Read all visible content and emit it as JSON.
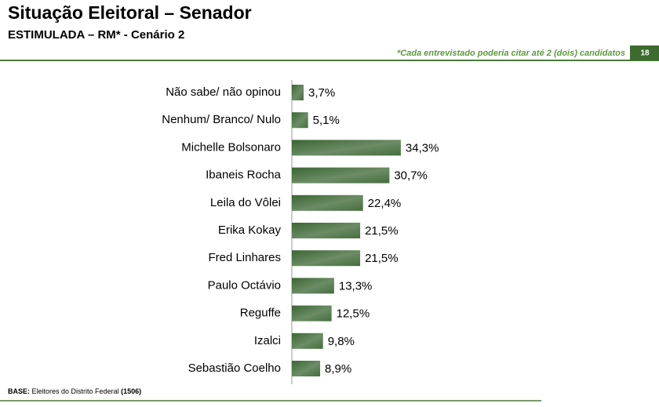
{
  "header": {
    "title": "Situação Eleitoral – Senador",
    "subtitle": "ESTIMULADA – RM* - Cenário 2",
    "note": "*Cada entrevistado poderia citar até 2 (dois) candidatos",
    "page_number": 18
  },
  "chart_data": {
    "type": "bar",
    "orientation": "horizontal",
    "color": "#3b6633",
    "categories": [
      "Não sabe/ não opinou",
      "Nenhum/ Branco/ Nulo",
      "Michelle Bolsonaro",
      "Ibaneis Rocha",
      "Leila do Vôlei",
      "Erika Kokay",
      "Fred Linhares",
      "Paulo Octávio",
      "Reguffe",
      "Izalci",
      "Sebastião Coelho"
    ],
    "values": [
      3.7,
      5.1,
      34.3,
      30.7,
      22.4,
      21.5,
      21.5,
      13.3,
      12.5,
      9.8,
      8.9
    ],
    "value_labels": [
      "3,7%",
      "5,1%",
      "34,3%",
      "30,7%",
      "22,4%",
      "21,5%",
      "21,5%",
      "13,3%",
      "12,5%",
      "9,8%",
      "8,9%"
    ]
  },
  "footer": {
    "base_label": "BASE:",
    "base_text": "Eleitores do Distrito Federal",
    "base_count": "(1506)"
  }
}
